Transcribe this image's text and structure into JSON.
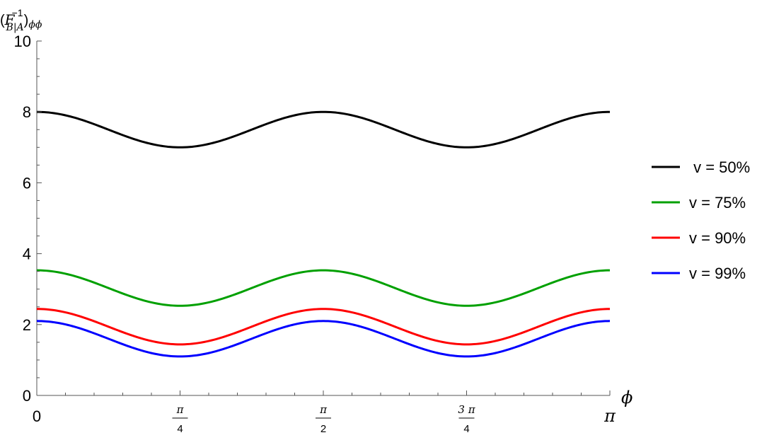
{
  "chart_data": {
    "type": "line",
    "ylabel": {
      "open": "(",
      "symbol": "F",
      "superscript": "−1",
      "subscript": "B|A",
      "close": ")",
      "outer_subscript": "ϕϕ"
    },
    "xlabel": "ϕ",
    "xlim": [
      0,
      3.14159265
    ],
    "ylim": [
      0,
      10
    ],
    "yticks": [
      0,
      2,
      4,
      6,
      8,
      10
    ],
    "ytick_labels": [
      "0",
      "2",
      "4",
      "6",
      "8",
      "10"
    ],
    "xticks": [
      {
        "value": 0,
        "label": "0"
      },
      {
        "value": 0.785398,
        "num": "π",
        "den": "4"
      },
      {
        "value": 1.570796,
        "num": "π",
        "den": "2"
      },
      {
        "value": 2.356194,
        "num": "3 π",
        "den": "4"
      },
      {
        "value": 3.14159265,
        "label": "π"
      }
    ],
    "grid": false,
    "legend_position": "right",
    "series": [
      {
        "name": " v = 50%",
        "color": "#000000",
        "max": 8.0,
        "min": 7.0
      },
      {
        "name": "v = 75%",
        "color": "#00a000",
        "max": 3.53,
        "min": 2.53
      },
      {
        "name": "v = 90%",
        "color": "#ff0000",
        "max": 2.44,
        "min": 1.44
      },
      {
        "name": "v = 99%",
        "color": "#0000ff",
        "max": 2.1,
        "min": 1.1
      }
    ]
  }
}
